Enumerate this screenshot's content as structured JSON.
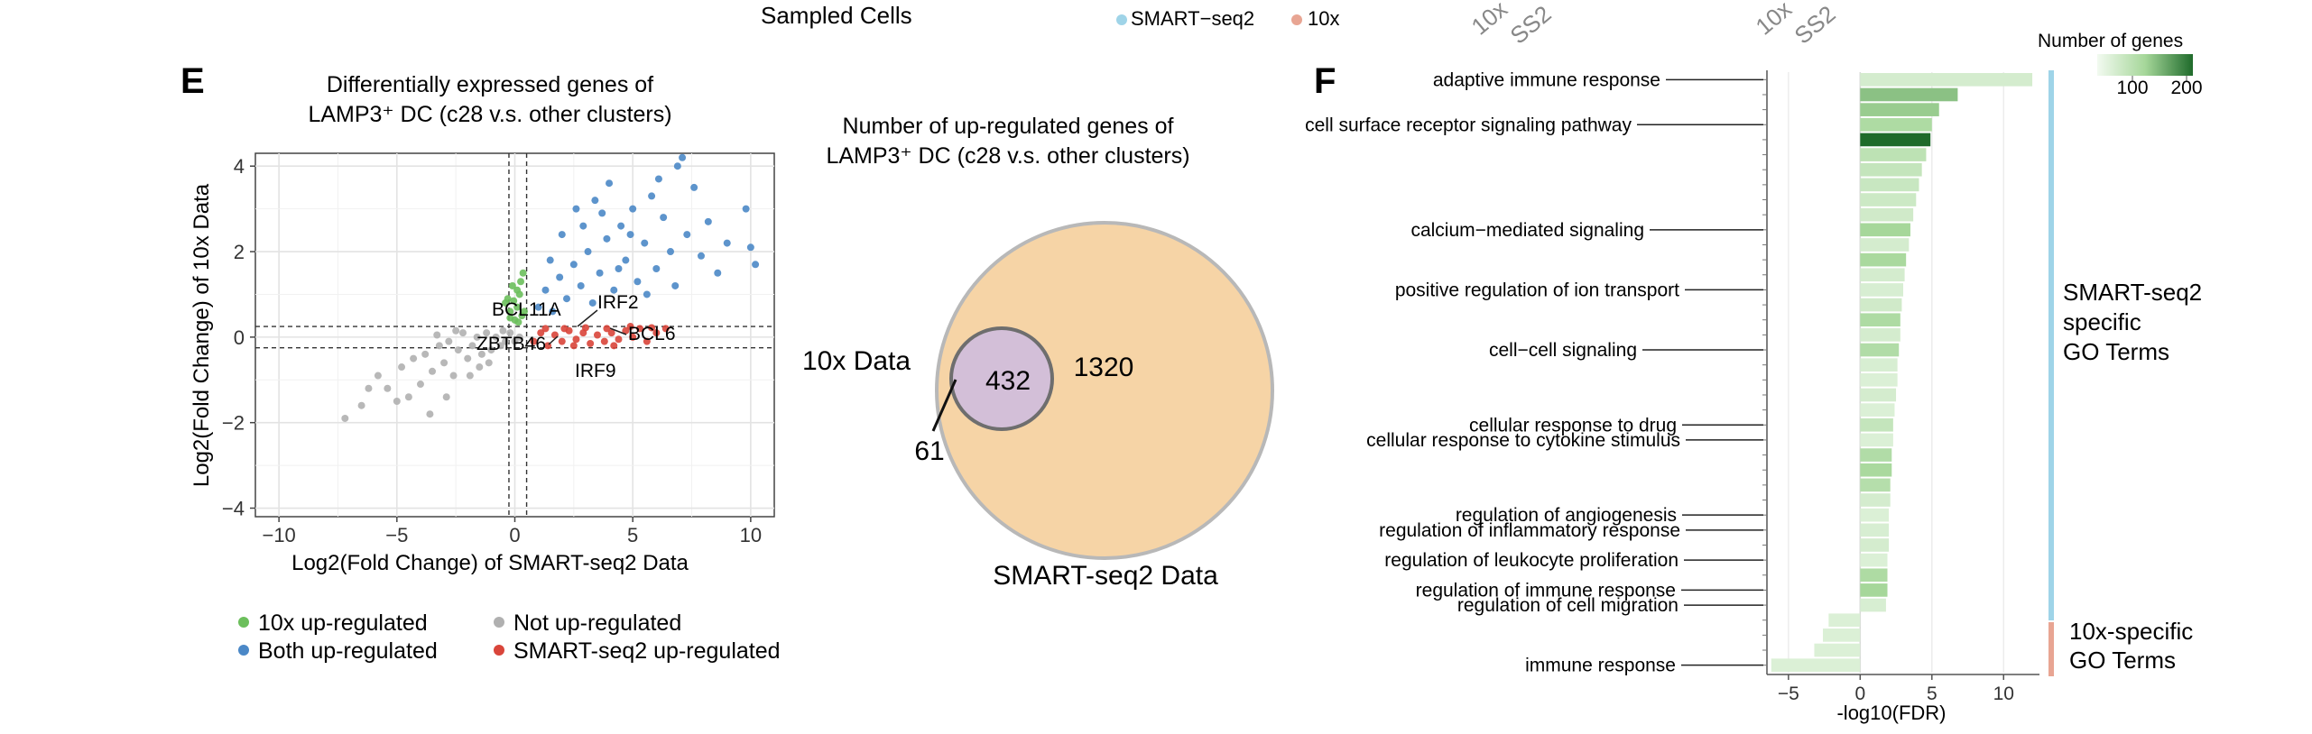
{
  "header": {
    "sampled_cells_label": "Sampled Cells",
    "legend": [
      {
        "label": "SMART−seq2",
        "color": "#9fd4e8"
      },
      {
        "label": "10x",
        "color": "#e8a593"
      }
    ],
    "rotated_labels_group1": [
      "10x",
      "SS2"
    ],
    "rotated_labels_group2": [
      "10x",
      "SS2"
    ]
  },
  "panel_e": {
    "letter": "E",
    "title_line1": "Differentially expressed genes of",
    "title_line2": "LAMP3⁺ DC (c28 v.s. other clusters)",
    "legend": [
      {
        "label": "10x up-regulated",
        "color": "#6cbf5c"
      },
      {
        "label": "Not up-regulated",
        "color": "#b0b0b0"
      },
      {
        "label": "Both up-regulated",
        "color": "#4b88c7"
      },
      {
        "label": "SMART-seq2 up-regulated",
        "color": "#d9453a"
      }
    ]
  },
  "venn": {
    "title_line1": "Number of up-regulated genes of",
    "title_line2": "LAMP3⁺ DC (c28 v.s. other clusters)",
    "sets": [
      {
        "name": "10x Data",
        "only": 61,
        "color": "#cdbbe0"
      },
      {
        "name": "SMART-seq2 Data",
        "only": 1320,
        "color": "#f6d4a6"
      }
    ],
    "intersection": 432
  },
  "panel_f": {
    "letter": "F",
    "legend_title": "Number of genes",
    "legend_ticks": [
      "100",
      "200"
    ],
    "group_labels": [
      {
        "lines": [
          "SMART-seq2",
          "specific",
          "GO Terms"
        ],
        "color": "#9fd4e8"
      },
      {
        "lines": [
          "10x-specific",
          "GO Terms"
        ],
        "color": "#e8a593"
      }
    ]
  },
  "chart_data": [
    {
      "type": "scatter",
      "title": "Differentially expressed genes of LAMP3⁺ DC (c28 v.s. other clusters)",
      "xlabel": "Log2(Fold Change) of SMART-seq2 Data",
      "ylabel": "Log2(Fold Change) of 10x Data",
      "xlim": [
        -11,
        11
      ],
      "ylim": [
        -4.2,
        4.3
      ],
      "xticks": [
        -10,
        -5,
        0,
        5,
        10
      ],
      "yticks": [
        -4,
        -2,
        0,
        2,
        4
      ],
      "thresholds": {
        "x": [
          -0.25,
          0.5
        ],
        "y": [
          -0.25,
          0.25
        ]
      },
      "grid": true,
      "series": [
        {
          "name": "10x up-regulated",
          "points": [
            [
              -0.3,
              0.9
            ],
            [
              -0.1,
              1.2
            ],
            [
              0.1,
              0.7
            ],
            [
              0.2,
              1.0
            ],
            [
              0.3,
              0.5
            ],
            [
              -0.2,
              0.6
            ],
            [
              0.0,
              0.4
            ],
            [
              0.35,
              1.5
            ],
            [
              -0.4,
              0.8
            ],
            [
              0.15,
              0.35
            ],
            [
              0.4,
              0.6
            ],
            [
              -0.05,
              0.85
            ],
            [
              0.25,
              1.3
            ],
            [
              0.1,
              1.1
            ],
            [
              -0.2,
              0.45
            ]
          ]
        },
        {
          "name": "Not up-regulated",
          "points": [
            [
              -7.2,
              -1.9
            ],
            [
              -6.5,
              -1.6
            ],
            [
              -5.4,
              -1.2
            ],
            [
              -5.0,
              -1.5
            ],
            [
              -4.8,
              -0.7
            ],
            [
              -4.3,
              -0.5
            ],
            [
              -4.0,
              -1.1
            ],
            [
              -3.8,
              -0.4
            ],
            [
              -3.5,
              -0.8
            ],
            [
              -3.2,
              -0.2
            ],
            [
              -3.0,
              -0.6
            ],
            [
              -2.8,
              -0.1
            ],
            [
              -2.6,
              -0.9
            ],
            [
              -2.4,
              -0.3
            ],
            [
              -2.2,
              0.1
            ],
            [
              -2.0,
              -0.5
            ],
            [
              -1.8,
              -0.2
            ],
            [
              -1.6,
              0.0
            ],
            [
              -1.4,
              -0.4
            ],
            [
              -1.2,
              0.1
            ],
            [
              -1.0,
              -0.3
            ],
            [
              -0.8,
              0.0
            ],
            [
              -0.6,
              -0.2
            ],
            [
              -0.4,
              -0.1
            ],
            [
              -0.2,
              0.1
            ],
            [
              0.0,
              -0.1
            ],
            [
              0.2,
              0.0
            ],
            [
              -2.9,
              -1.4
            ],
            [
              -3.6,
              -1.8
            ],
            [
              -4.5,
              -1.4
            ],
            [
              -5.8,
              -0.9
            ],
            [
              -6.2,
              -1.2
            ],
            [
              -1.5,
              -0.7
            ],
            [
              -2.5,
              0.15
            ],
            [
              -3.3,
              0.05
            ],
            [
              -1.1,
              -0.6
            ],
            [
              -0.5,
              0.15
            ],
            [
              -1.9,
              -0.9
            ]
          ]
        },
        {
          "name": "Both up-regulated",
          "points": [
            [
              1.0,
              0.7
            ],
            [
              1.3,
              1.1
            ],
            [
              1.6,
              0.6
            ],
            [
              1.9,
              1.4
            ],
            [
              2.2,
              0.9
            ],
            [
              2.5,
              1.7
            ],
            [
              2.8,
              1.2
            ],
            [
              3.1,
              2.0
            ],
            [
              3.3,
              0.8
            ],
            [
              3.6,
              1.5
            ],
            [
              3.9,
              2.3
            ],
            [
              4.2,
              1.1
            ],
            [
              4.5,
              2.6
            ],
            [
              4.7,
              1.8
            ],
            [
              5.0,
              3.0
            ],
            [
              5.2,
              1.3
            ],
            [
              5.5,
              2.2
            ],
            [
              5.8,
              3.3
            ],
            [
              6.0,
              1.6
            ],
            [
              6.3,
              2.8
            ],
            [
              6.6,
              2.0
            ],
            [
              6.9,
              4.0
            ],
            [
              7.1,
              4.2
            ],
            [
              7.3,
              2.4
            ],
            [
              7.6,
              3.5
            ],
            [
              7.9,
              1.9
            ],
            [
              8.2,
              2.7
            ],
            [
              8.6,
              1.5
            ],
            [
              9.0,
              2.2
            ],
            [
              9.8,
              3.0
            ],
            [
              10.0,
              2.1
            ],
            [
              10.2,
              1.7
            ],
            [
              2.0,
              2.4
            ],
            [
              2.6,
              3.0
            ],
            [
              3.4,
              3.2
            ],
            [
              4.0,
              3.6
            ],
            [
              4.4,
              1.6
            ],
            [
              5.6,
              1.0
            ],
            [
              6.8,
              1.2
            ],
            [
              1.5,
              1.8
            ],
            [
              2.9,
              2.6
            ],
            [
              3.7,
              2.9
            ],
            [
              4.9,
              2.4
            ],
            [
              6.1,
              3.7
            ]
          ]
        },
        {
          "name": "SMART-seq2 up-regulated",
          "points": [
            [
              0.8,
              -0.1
            ],
            [
              1.1,
              0.1
            ],
            [
              1.4,
              -0.2
            ],
            [
              1.7,
              0.05
            ],
            [
              2.0,
              -0.1
            ],
            [
              2.3,
              0.15
            ],
            [
              2.6,
              -0.05
            ],
            [
              2.9,
              0.1
            ],
            [
              3.2,
              -0.15
            ],
            [
              3.5,
              0.05
            ],
            [
              3.8,
              -0.1
            ],
            [
              4.1,
              0.1
            ],
            [
              4.4,
              -0.05
            ],
            [
              4.7,
              0.15
            ],
            [
              5.0,
              0.0
            ],
            [
              5.3,
              0.2
            ],
            [
              5.6,
              -0.1
            ],
            [
              6.0,
              0.1
            ],
            [
              6.4,
              0.2
            ],
            [
              1.3,
              0.2
            ],
            [
              2.1,
              0.2
            ],
            [
              3.0,
              0.22
            ],
            [
              3.9,
              0.2
            ],
            [
              4.9,
              0.25
            ],
            [
              5.8,
              0.22
            ],
            [
              2.5,
              -0.2
            ],
            [
              4.2,
              -0.2
            ]
          ]
        }
      ],
      "annotations": [
        "BCL11A",
        "IRF2",
        "ZBTB46",
        "BCL6",
        "IRF9"
      ]
    },
    {
      "type": "bar",
      "orientation": "horizontal",
      "xlabel": "-log10(FDR)",
      "xlim": [
        -6.5,
        12.5
      ],
      "xticks": [
        -5,
        0,
        5,
        10
      ],
      "row_labels": [
        {
          "row": 0,
          "label": "adaptive immune response"
        },
        {
          "row": 3,
          "label": "cell surface receptor signaling pathway"
        },
        {
          "row": 10,
          "label": "calcium−mediated signaling"
        },
        {
          "row": 14,
          "label": "positive regulation of ion transport"
        },
        {
          "row": 18,
          "label": "cell−cell signaling"
        },
        {
          "row": 23,
          "label": "cellular response to drug"
        },
        {
          "row": 24,
          "label": "cellular response to cytokine stimulus"
        },
        {
          "row": 29,
          "label": "regulation of angiogenesis"
        },
        {
          "row": 30,
          "label": "regulation of inflammatory response"
        },
        {
          "row": 32,
          "label": "regulation of leukocyte proliferation"
        },
        {
          "row": 34,
          "label": "regulation of immune response"
        },
        {
          "row": 35,
          "label": "regulation of cell migration"
        },
        {
          "row": 39,
          "label": "immune response"
        }
      ],
      "values": [
        12.0,
        6.8,
        5.5,
        5.0,
        4.9,
        4.6,
        4.3,
        4.1,
        3.9,
        3.7,
        3.5,
        3.4,
        3.2,
        3.1,
        3.0,
        2.9,
        2.8,
        2.8,
        2.7,
        2.6,
        2.6,
        2.5,
        2.4,
        2.3,
        2.3,
        2.2,
        2.2,
        2.1,
        2.1,
        2.0,
        2.0,
        2.0,
        1.9,
        1.9,
        1.9,
        1.8,
        -2.2,
        -2.6,
        -3.2,
        -6.2
      ],
      "gene_counts": [
        40,
        120,
        110,
        90,
        200,
        70,
        60,
        55,
        50,
        45,
        100,
        40,
        95,
        40,
        35,
        45,
        90,
        40,
        85,
        35,
        30,
        40,
        30,
        60,
        30,
        85,
        95,
        80,
        40,
        30,
        35,
        40,
        30,
        90,
        100,
        35,
        30,
        30,
        30,
        30
      ],
      "groups": [
        {
          "name": "SMART-seq2 specific GO Terms",
          "rows": [
            0,
            35
          ]
        },
        {
          "name": "10x-specific GO Terms",
          "rows": [
            36,
            39
          ]
        }
      ]
    }
  ]
}
